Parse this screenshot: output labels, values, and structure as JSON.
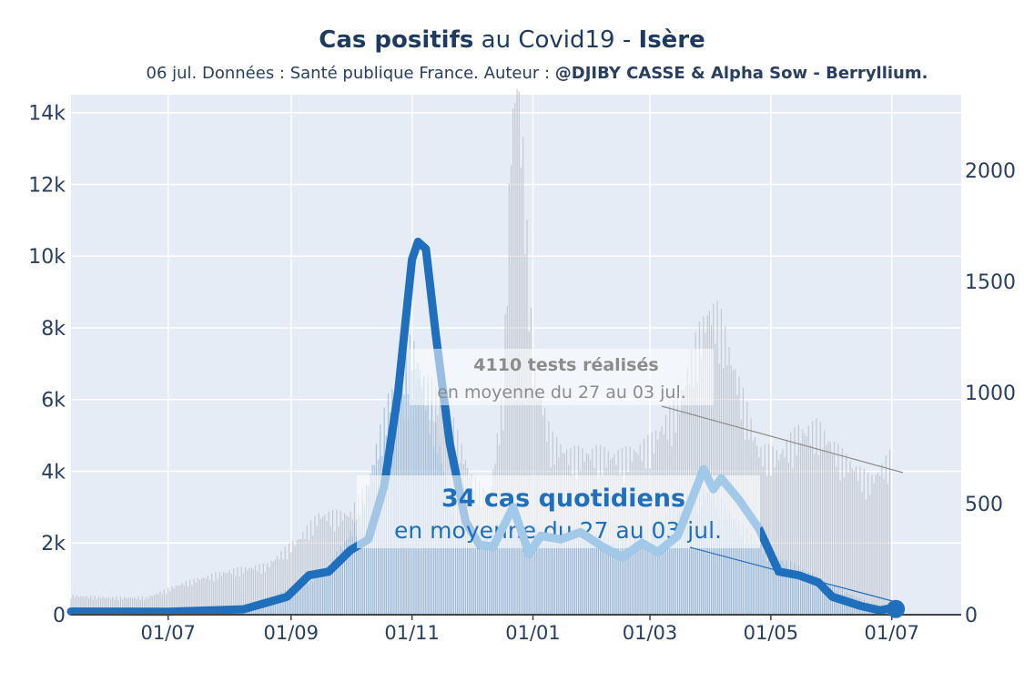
{
  "header": {
    "title_part1": "Cas positifs",
    "title_part2": " au Covid19 - ",
    "title_part3": "Isère",
    "subtitle_part1": "06 jul. Données : Santé publique France. Auteur : ",
    "subtitle_part2": "@DJIBY CASSE & Alpha Sow - Berryllium."
  },
  "annotations": {
    "tests_title": "4110 tests réalisés",
    "tests_body": "en moyenne du 27 au 03 jul.",
    "cases_title": "34 cas quotidiens",
    "cases_body": "en moyenne du 27 au 03 jul."
  },
  "colors": {
    "plot_bg": "#e5ecf6",
    "cases_line": "#1f6fbd",
    "cases_line_late": "#a3c9e8",
    "cases_bars": "#8fb6da",
    "tests_bars": "#b8bcc4"
  },
  "chart_data": {
    "type": "bar",
    "x_range": [
      "2020-05-13",
      "2021-08-05"
    ],
    "x_ticks": [
      "01/07",
      "01/09",
      "01/11",
      "01/01",
      "01/03",
      "01/05",
      "01/07"
    ],
    "y_left_ticks": [
      "0",
      "2k",
      "4k",
      "6k",
      "8k",
      "10k",
      "12k",
      "14k"
    ],
    "y_left_range": [
      0,
      14500
    ],
    "y_right_ticks": [
      "0",
      "500",
      "1000",
      "1500",
      "2000"
    ],
    "y_right_range": [
      0,
      2340
    ],
    "series": [
      {
        "name": "tests (bars, left axis)",
        "axis": "left",
        "points": [
          [
            "2020-05-13",
            500
          ],
          [
            "2020-06-01",
            450
          ],
          [
            "2020-06-20",
            450
          ],
          [
            "2020-07-10",
            850
          ],
          [
            "2020-08-01",
            1150
          ],
          [
            "2020-08-20",
            1300
          ],
          [
            "2020-09-05",
            2000
          ],
          [
            "2020-09-15",
            2600
          ],
          [
            "2020-10-01",
            2650
          ],
          [
            "2020-10-15",
            3800
          ],
          [
            "2020-10-25",
            5600
          ],
          [
            "2020-11-01",
            6300
          ],
          [
            "2020-11-10",
            6000
          ],
          [
            "2020-11-20",
            5200
          ],
          [
            "2020-12-01",
            3600
          ],
          [
            "2020-12-10",
            3000
          ],
          [
            "2020-12-17",
            5800
          ],
          [
            "2020-12-21",
            12600
          ],
          [
            "2020-12-24",
            14200
          ],
          [
            "2020-12-27",
            12000
          ],
          [
            "2021-01-01",
            6600
          ],
          [
            "2021-01-10",
            4600
          ],
          [
            "2021-01-20",
            4200
          ],
          [
            "2021-02-01",
            4250
          ],
          [
            "2021-02-15",
            4150
          ],
          [
            "2021-03-01",
            4500
          ],
          [
            "2021-03-15",
            5500
          ],
          [
            "2021-03-25",
            7200
          ],
          [
            "2021-03-31",
            8000
          ],
          [
            "2021-04-05",
            7800
          ],
          [
            "2021-04-15",
            6000
          ],
          [
            "2021-04-25",
            4300
          ],
          [
            "2021-05-05",
            4200
          ],
          [
            "2021-05-15",
            4800
          ],
          [
            "2021-05-25",
            4900
          ],
          [
            "2021-06-05",
            4200
          ],
          [
            "2021-06-20",
            3500
          ],
          [
            "2021-06-30",
            4110
          ]
        ]
      },
      {
        "name": "cas positifs (bars, right axis)",
        "axis": "right",
        "points": [
          [
            "2020-05-13",
            10
          ],
          [
            "2020-07-20",
            20
          ],
          [
            "2020-08-15",
            50
          ],
          [
            "2020-09-01",
            110
          ],
          [
            "2020-09-20",
            200
          ],
          [
            "2020-10-05",
            400
          ],
          [
            "2020-10-20",
            900
          ],
          [
            "2020-11-01",
            1150
          ],
          [
            "2020-11-10",
            900
          ],
          [
            "2020-11-20",
            500
          ],
          [
            "2020-12-01",
            320
          ],
          [
            "2020-12-15",
            380
          ],
          [
            "2021-01-01",
            350
          ],
          [
            "2021-01-15",
            370
          ],
          [
            "2021-02-01",
            330
          ],
          [
            "2021-02-15",
            300
          ],
          [
            "2021-03-01",
            350
          ],
          [
            "2021-03-20",
            500
          ],
          [
            "2021-04-01",
            520
          ],
          [
            "2021-04-15",
            380
          ],
          [
            "2021-05-01",
            250
          ],
          [
            "2021-05-15",
            200
          ],
          [
            "2021-06-01",
            120
          ],
          [
            "2021-06-20",
            50
          ],
          [
            "2021-06-30",
            34
          ]
        ]
      },
      {
        "name": "moyenne cas (line, left axis)",
        "axis": "left",
        "points": [
          [
            "2020-05-13",
            90
          ],
          [
            "2020-07-01",
            80
          ],
          [
            "2020-08-08",
            150
          ],
          [
            "2020-08-30",
            500
          ],
          [
            "2020-09-10",
            1100
          ],
          [
            "2020-09-20",
            1200
          ],
          [
            "2020-10-01",
            1800
          ],
          [
            "2020-10-10",
            2100
          ],
          [
            "2020-10-18",
            3600
          ],
          [
            "2020-10-25",
            6200
          ],
          [
            "2020-11-01",
            9900
          ],
          [
            "2020-11-04",
            10400
          ],
          [
            "2020-11-08",
            10200
          ],
          [
            "2020-11-13",
            7800
          ],
          [
            "2020-11-20",
            4800
          ],
          [
            "2020-11-28",
            2600
          ],
          [
            "2020-12-05",
            1950
          ],
          [
            "2020-12-12",
            1900
          ],
          [
            "2020-12-22",
            3000
          ],
          [
            "2020-12-30",
            1700
          ],
          [
            "2021-01-05",
            2200
          ],
          [
            "2021-01-15",
            2100
          ],
          [
            "2021-01-25",
            2300
          ],
          [
            "2021-02-05",
            1900
          ],
          [
            "2021-02-15",
            1600
          ],
          [
            "2021-02-25",
            2000
          ],
          [
            "2021-03-05",
            1750
          ],
          [
            "2021-03-15",
            2200
          ],
          [
            "2021-03-28",
            4050
          ],
          [
            "2021-04-02",
            3500
          ],
          [
            "2021-04-06",
            3800
          ],
          [
            "2021-04-15",
            3200
          ],
          [
            "2021-04-25",
            2400
          ],
          [
            "2021-05-05",
            1200
          ],
          [
            "2021-05-15",
            1100
          ],
          [
            "2021-05-25",
            900
          ],
          [
            "2021-06-01",
            500
          ],
          [
            "2021-06-15",
            250
          ],
          [
            "2021-06-25",
            120
          ],
          [
            "2021-07-03",
            210
          ]
        ]
      }
    ]
  }
}
